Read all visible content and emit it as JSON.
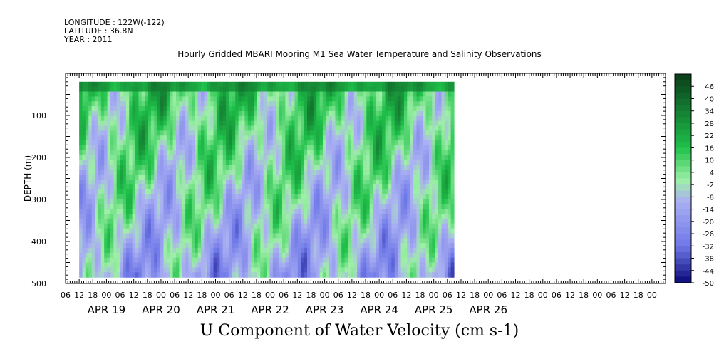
{
  "header": {
    "longitude": "LONGITUDE : 122W(-122)",
    "latitude": "LATITUDE : 36.8N",
    "year": "YEAR : 2011"
  },
  "chart_data": {
    "type": "heatmap",
    "title": "Hourly Gridded MBARI Mooring M1 Sea Water Temperature and Salinity Observations",
    "xlabel": "",
    "ylabel": "DEPTH (m)",
    "bottom_title": "U Component of Water Velocity (cm s-1)",
    "x_start_hour_label": "06",
    "x_hour_ticks": [
      "06",
      "12",
      "18",
      "00",
      "06",
      "12",
      "18",
      "00",
      "06",
      "12",
      "18",
      "00",
      "06",
      "12",
      "18",
      "00",
      "06",
      "12",
      "18",
      "00",
      "06",
      "12",
      "18",
      "00",
      "06",
      "12",
      "18",
      "00",
      "06",
      "12",
      "18",
      "00",
      "06",
      "12",
      "18",
      "00",
      "06",
      "12",
      "18",
      "00",
      "06",
      "12",
      "18",
      "00"
    ],
    "x_day_labels": [
      "APR 19",
      "APR 20",
      "APR 21",
      "APR 22",
      "APR 23",
      "APR 24",
      "APR 25",
      "APR 26"
    ],
    "ylim": [
      500,
      0
    ],
    "y_ticks": [
      100,
      200,
      300,
      400,
      500
    ],
    "colorbar": {
      "labels": [
        "46",
        "40",
        "34",
        "28",
        "22",
        "16",
        "10",
        "4",
        "-2",
        "-8",
        "-14",
        "-20",
        "-26",
        "-32",
        "-38",
        "-44",
        "-50"
      ],
      "min": -50,
      "max": 52,
      "step": 3,
      "colors": {
        "strong_positive": "#0a3d1a",
        "positive": "#1fc04a",
        "weak_positive": "#9ef0a6",
        "weak_negative": "#aab0f2",
        "negative": "#6f78e8",
        "strong_negative": "#0a0a78"
      }
    },
    "depth_profile_m": [
      20,
      50,
      80,
      110,
      140,
      170,
      200,
      230,
      260,
      290,
      320,
      350,
      380,
      410,
      440,
      470
    ],
    "data_valid_x_range_days": [
      0.25,
      7.12
    ],
    "data_valid_depth_range_m": [
      20,
      485
    ]
  }
}
